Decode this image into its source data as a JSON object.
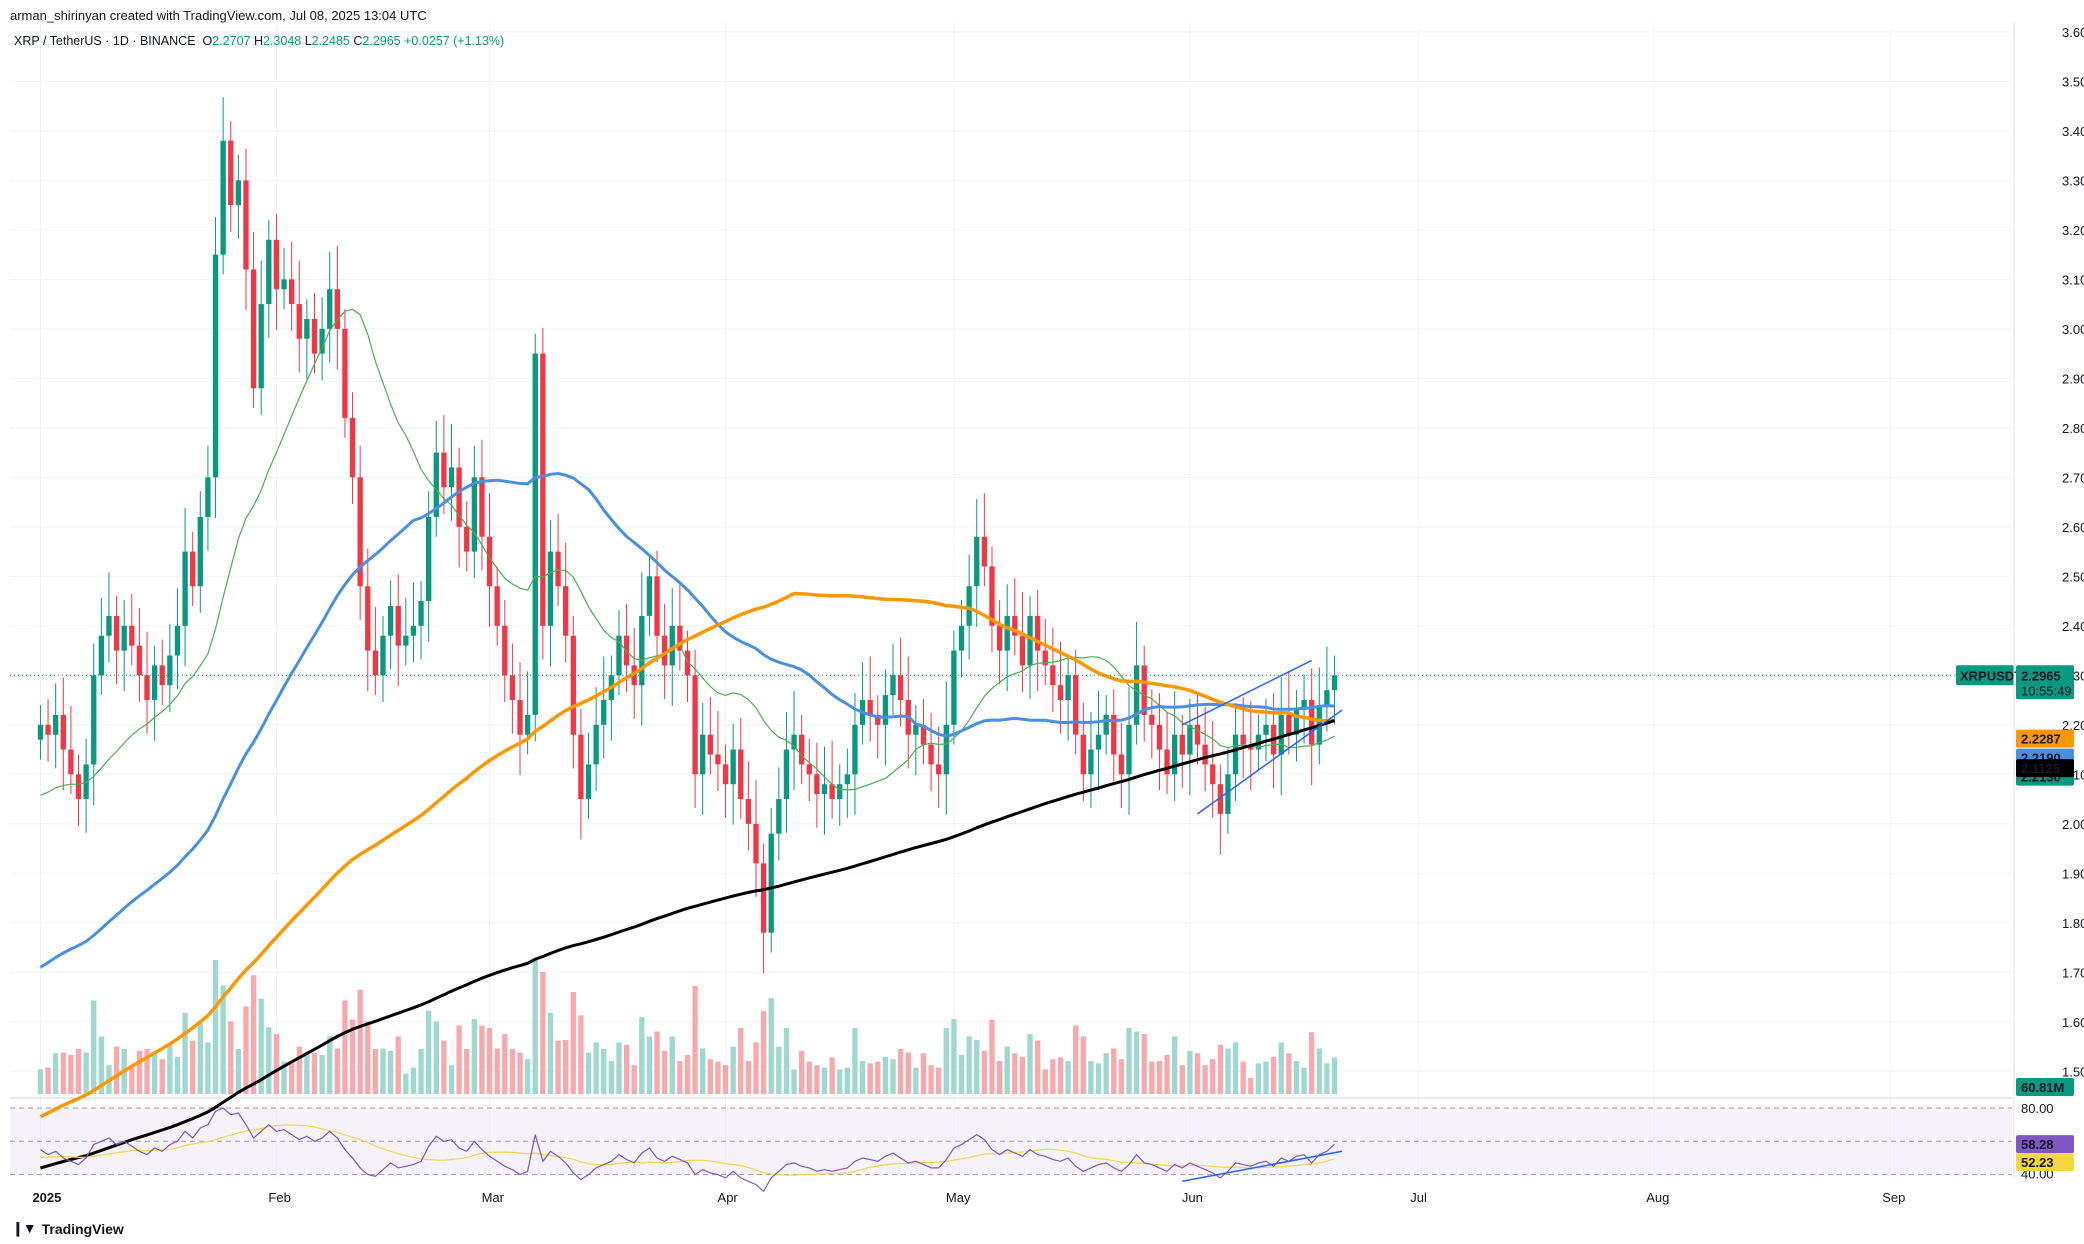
{
  "header": {
    "attribution": "arman_shirinyan created with TradingView.com, Jul 08, 2025 13:04 UTC",
    "symbol": "XRP / TetherUS · 1D · BINANCE",
    "o_label": "O",
    "o_value": "2.2707",
    "h_label": "H",
    "h_value": "2.3048",
    "l_label": "L",
    "l_value": "2.2485",
    "c_label": "C",
    "c_value": "2.2965",
    "change": "+0.0257 (+1.13%)"
  },
  "footer": {
    "brand": "TradingView"
  },
  "colors": {
    "up": "#089981",
    "down": "#f23645",
    "vol_up": "#9fd8cf",
    "vol_down": "#f7a9ad",
    "sma_fast": "#4caf50",
    "sma_mid": "#4a90e2",
    "sma_slow": "#ff9800",
    "sma_long": "#000000",
    "rsi": "#7e57c2",
    "rsi_ma": "#f5d742",
    "trend": "#2962ff"
  },
  "chart_data": {
    "type": "candlestick",
    "price_axis": {
      "min": 1.45,
      "max": 3.62,
      "ticks": [
        "3.6000",
        "3.5000",
        "3.4000",
        "3.3000",
        "3.2000",
        "3.1000",
        "3.0000",
        "2.9000",
        "2.8000",
        "2.7000",
        "2.6000",
        "2.5000",
        "2.4000",
        "2.3000",
        "2.2000",
        "2.1000",
        "2.0000",
        "1.9000",
        "1.8000",
        "1.7000",
        "1.6000",
        "1.5000"
      ]
    },
    "time_axis": {
      "labels": [
        {
          "label": "2025",
          "day": 0
        },
        {
          "label": "Feb",
          "day": 31
        },
        {
          "label": "Mar",
          "day": 59
        },
        {
          "label": "Apr",
          "day": 90
        },
        {
          "label": "May",
          "day": 120
        },
        {
          "label": "Jun",
          "day": 151
        },
        {
          "label": "Jul",
          "day": 181
        },
        {
          "label": "Aug",
          "day": 212
        },
        {
          "label": "Sep",
          "day": 243
        }
      ],
      "first_day": -4,
      "last_day": 259
    },
    "closes": [
      2.2,
      2.18,
      2.22,
      2.15,
      2.1,
      2.05,
      2.12,
      2.3,
      2.38,
      2.42,
      2.35,
      2.4,
      2.36,
      2.3,
      2.25,
      2.32,
      2.28,
      2.34,
      2.4,
      2.55,
      2.48,
      2.62,
      2.7,
      3.15,
      3.38,
      3.25,
      3.3,
      3.12,
      2.88,
      3.05,
      3.18,
      3.08,
      3.1,
      3.05,
      2.98,
      3.02,
      2.95,
      3.0,
      3.08,
      3.0,
      2.82,
      2.7,
      2.48,
      2.35,
      2.3,
      2.38,
      2.44,
      2.36,
      2.38,
      2.4,
      2.45,
      2.62,
      2.75,
      2.68,
      2.72,
      2.6,
      2.55,
      2.7,
      2.58,
      2.48,
      2.4,
      2.3,
      2.25,
      2.18,
      2.22,
      2.95,
      2.4,
      2.55,
      2.48,
      2.38,
      2.18,
      2.05,
      2.12,
      2.2,
      2.25,
      2.3,
      2.38,
      2.32,
      2.28,
      2.42,
      2.5,
      2.38,
      2.32,
      2.4,
      2.35,
      2.3,
      2.1,
      2.18,
      2.14,
      2.12,
      2.08,
      2.15,
      2.05,
      2.0,
      1.92,
      1.78,
      1.98,
      2.05,
      2.15,
      2.18,
      2.12,
      2.1,
      2.06,
      2.08,
      2.05,
      2.08,
      2.1,
      2.2,
      2.25,
      2.22,
      2.2,
      2.26,
      2.3,
      2.25,
      2.18,
      2.2,
      2.16,
      2.12,
      2.1,
      2.2,
      2.35,
      2.4,
      2.48,
      2.58,
      2.52,
      2.4,
      2.35,
      2.42,
      2.38,
      2.32,
      2.42,
      2.35,
      2.32,
      2.28,
      2.25,
      2.3,
      2.18,
      2.1,
      2.15,
      2.18,
      2.22,
      2.14,
      2.1,
      2.2,
      2.32,
      2.22,
      2.2,
      2.15,
      2.1,
      2.18,
      2.14,
      2.2,
      2.16,
      2.12,
      2.08,
      2.02,
      2.1,
      2.18,
      2.16,
      2.15,
      2.18,
      2.2,
      2.14,
      2.22,
      2.18,
      2.23,
      2.25,
      2.16,
      2.24,
      2.27,
      2.3
    ],
    "volume_axis": {
      "label": "60.81M",
      "current": 60.81
    },
    "rsi": {
      "axis_top": "80.00",
      "axis_bottom": "40.00",
      "value_label": "58.28",
      "ma_label": "52.23",
      "values": [
        55,
        52,
        54,
        50,
        48,
        46,
        50,
        58,
        60,
        62,
        58,
        60,
        57,
        54,
        52,
        56,
        54,
        58,
        60,
        66,
        62,
        68,
        70,
        78,
        80,
        76,
        77,
        70,
        62,
        66,
        70,
        66,
        67,
        64,
        61,
        63,
        60,
        62,
        66,
        62,
        55,
        50,
        44,
        40,
        39,
        43,
        47,
        44,
        45,
        46,
        48,
        57,
        63,
        60,
        61,
        56,
        54,
        60,
        55,
        51,
        48,
        45,
        43,
        40,
        42,
        64,
        48,
        54,
        51,
        47,
        41,
        37,
        40,
        44,
        46,
        48,
        52,
        49,
        47,
        53,
        56,
        50,
        48,
        51,
        49,
        47,
        40,
        43,
        41,
        40,
        38,
        42,
        38,
        36,
        34,
        30,
        38,
        42,
        46,
        47,
        45,
        44,
        42,
        43,
        42,
        43,
        44,
        48,
        50,
        49,
        48,
        51,
        53,
        50,
        47,
        48,
        46,
        44,
        44,
        49,
        56,
        58,
        61,
        64,
        61,
        55,
        52,
        55,
        53,
        51,
        55,
        52,
        51,
        49,
        48,
        50,
        45,
        42,
        44,
        46,
        47,
        44,
        42,
        46,
        52,
        47,
        46,
        44,
        42,
        46,
        44,
        47,
        45,
        43,
        41,
        38,
        42,
        47,
        46,
        45,
        47,
        48,
        45,
        50,
        48,
        51,
        52,
        47,
        52,
        54,
        58.28
      ]
    }
  },
  "labels": {
    "price_tag": {
      "symbol": "XRPUSDT",
      "price": "2.2965",
      "countdown": "10:55:49"
    },
    "sma_slow_tag": "2.2287",
    "sma_mid_tag": "2.2190",
    "sma_fast_tag": "2.2130",
    "sma_long_tag": "2.1125"
  }
}
